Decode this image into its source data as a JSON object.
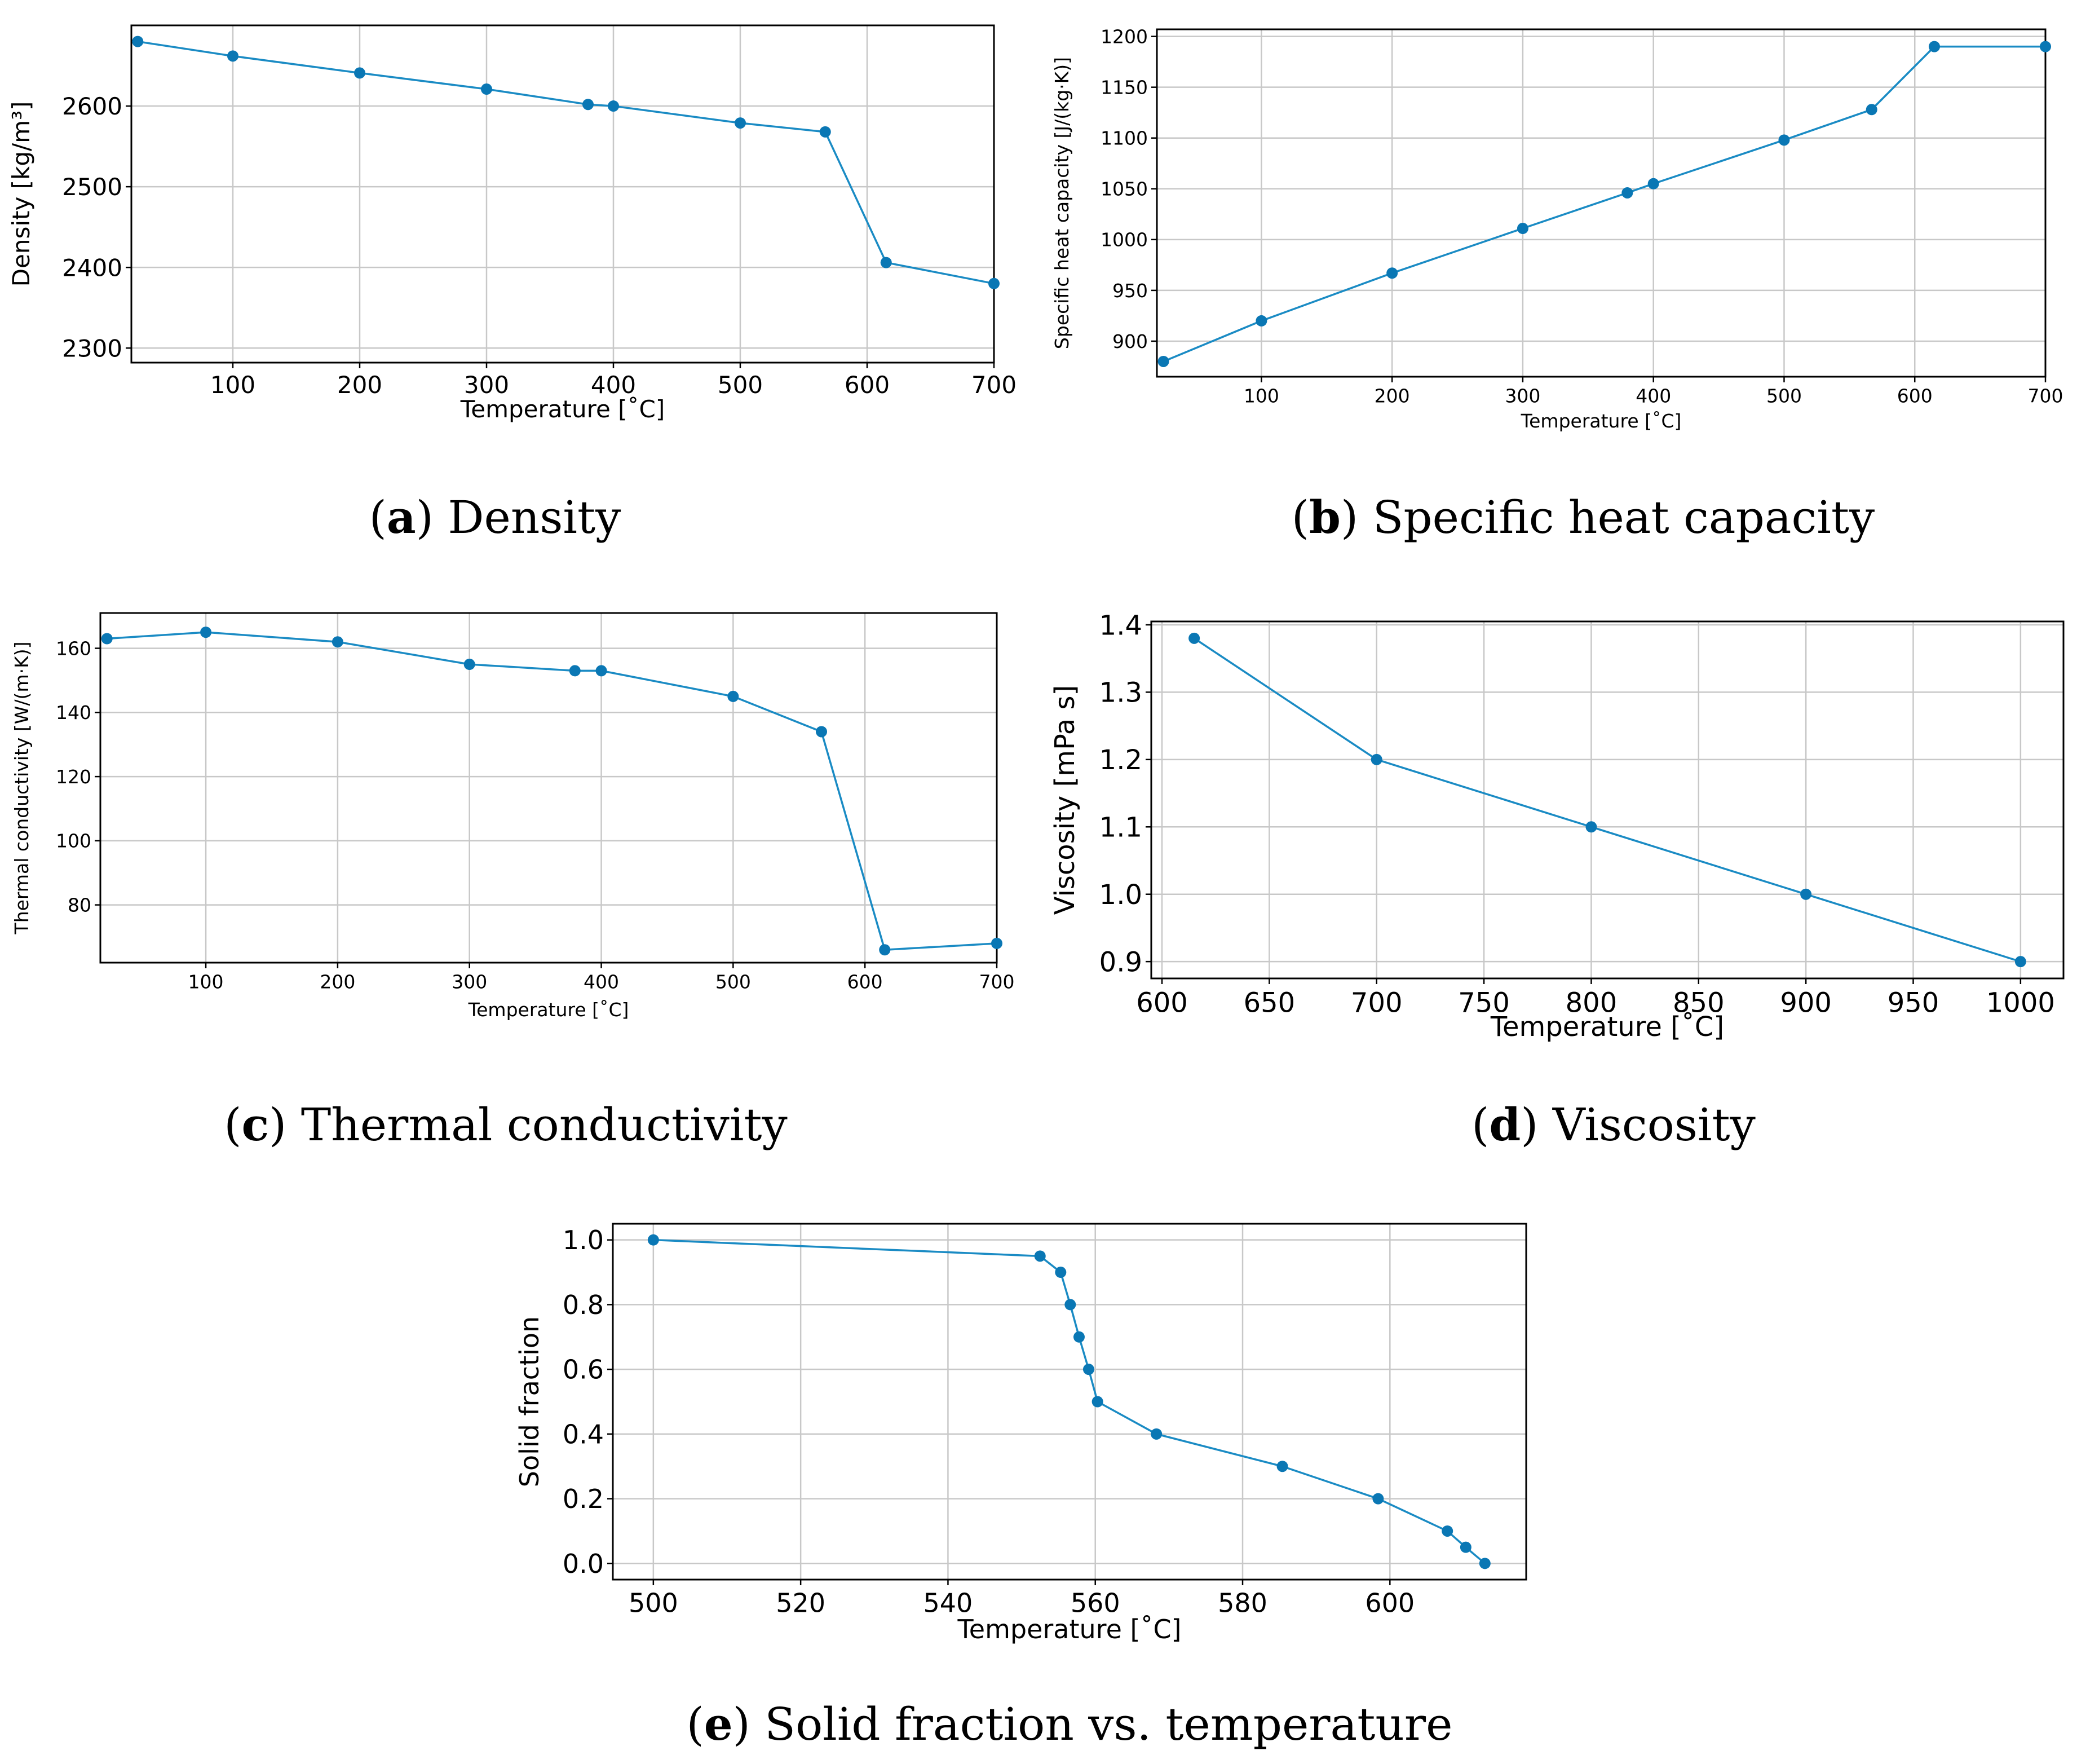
{
  "colors": {
    "series": "#1a8bc4",
    "marker": "#0a77b4",
    "grid": "#c8c8c8",
    "spine": "#000000"
  },
  "chart_data": [
    {
      "id": "a",
      "type": "line",
      "caption": {
        "letter": "a",
        "text": " Density"
      },
      "xlabel": "Temperature [˚C]",
      "ylabel": "Density [kg/m³]",
      "xlim": [
        20,
        700
      ],
      "ylim": [
        2282,
        2700
      ],
      "xticks": [
        100,
        200,
        300,
        400,
        500,
        600,
        700
      ],
      "yticks": [
        2300,
        2400,
        2500,
        2600
      ],
      "x": [
        25,
        100,
        200,
        300,
        380,
        400,
        500,
        567,
        615,
        700
      ],
      "y": [
        2680,
        2662,
        2641,
        2621,
        2602,
        2600,
        2579,
        2568,
        2406,
        2380
      ],
      "grid": true
    },
    {
      "id": "b",
      "type": "line",
      "caption": {
        "letter": "b",
        "text": " Specific heat capacity"
      },
      "xlabel": "Temperature [˚C]",
      "ylabel": "Specific heat capacity [J/(kg·K)]",
      "xlim": [
        20,
        700
      ],
      "ylim": [
        865,
        1207
      ],
      "xticks": [
        100,
        200,
        300,
        400,
        500,
        600,
        700
      ],
      "yticks": [
        900,
        950,
        1000,
        1050,
        1100,
        1150,
        1200
      ],
      "x": [
        25,
        100,
        200,
        300,
        380,
        400,
        500,
        567,
        615,
        700
      ],
      "y": [
        880,
        920,
        967,
        1011,
        1046,
        1055,
        1098,
        1128,
        1190,
        1190
      ],
      "grid": true
    },
    {
      "id": "c",
      "type": "line",
      "caption": {
        "letter": "c",
        "text": " Thermal conductivity"
      },
      "xlabel": "Temperature [˚C]",
      "ylabel": "Thermal conductivity [W/(m·K)]",
      "xlim": [
        20,
        700
      ],
      "ylim": [
        62,
        171
      ],
      "xticks": [
        100,
        200,
        300,
        400,
        500,
        600,
        700
      ],
      "yticks": [
        80,
        100,
        120,
        140,
        160
      ],
      "x": [
        25,
        100,
        200,
        300,
        380,
        400,
        500,
        567,
        615,
        700
      ],
      "y": [
        163,
        165,
        162,
        155,
        153,
        153,
        145,
        134,
        66,
        68
      ],
      "grid": true
    },
    {
      "id": "d",
      "type": "line",
      "caption": {
        "letter": "d",
        "text": " Viscosity"
      },
      "xlabel": "Temperature [˚C]",
      "ylabel": "Viscosity [mPa s]",
      "xlim": [
        595,
        1020
      ],
      "ylim": [
        0.875,
        1.405
      ],
      "xticks": [
        600,
        650,
        700,
        750,
        800,
        850,
        900,
        950,
        1000
      ],
      "ytick_labels": [
        "0.9",
        "1.0",
        "1.1",
        "1.2",
        "1.3",
        "1.4"
      ],
      "yticks": [
        0.9,
        1.0,
        1.1,
        1.2,
        1.3,
        1.4
      ],
      "x": [
        615,
        700,
        800,
        900,
        1000
      ],
      "y": [
        1.38,
        1.2,
        1.1,
        1.0,
        0.9
      ],
      "grid": true
    },
    {
      "id": "e",
      "type": "line",
      "caption": {
        "letter": "e",
        "text": " Solid fraction vs. temperature"
      },
      "xlabel": "Temperature [˚C]",
      "ylabel": "Solid fraction",
      "xlim": [
        494.5,
        618.5
      ],
      "ylim": [
        -0.05,
        1.05
      ],
      "xticks": [
        500,
        520,
        540,
        560,
        580,
        600
      ],
      "ytick_labels": [
        "0.0",
        "0.2",
        "0.4",
        "0.6",
        "0.8",
        "1.0"
      ],
      "yticks": [
        0.0,
        0.2,
        0.4,
        0.6,
        0.8,
        1.0
      ],
      "x": [
        500,
        552.5,
        555.3,
        556.6,
        557.8,
        559.1,
        560.3,
        568.3,
        585.4,
        598.4,
        607.8,
        610.3,
        612.9
      ],
      "y": [
        1.0,
        0.95,
        0.9,
        0.8,
        0.7,
        0.6,
        0.5,
        0.4,
        0.3,
        0.2,
        0.1,
        0.05,
        0.0
      ],
      "grid": true
    }
  ]
}
